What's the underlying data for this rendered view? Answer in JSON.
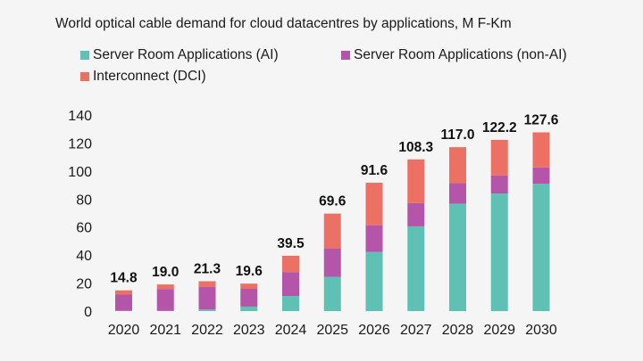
{
  "chart_data": {
    "type": "bar",
    "stacked": true,
    "title": "World optical cable demand for cloud datacentres by applications, M F-Km",
    "xlabel": "",
    "ylabel": "",
    "ylim": [
      0,
      140
    ],
    "yticks": [
      0,
      20,
      40,
      60,
      80,
      100,
      120,
      140
    ],
    "grid": false,
    "legend_position": "top-left",
    "categories": [
      "2020",
      "2021",
      "2022",
      "2023",
      "2024",
      "2025",
      "2026",
      "2027",
      "2028",
      "2029",
      "2030"
    ],
    "series": [
      {
        "name": "Server Room Applications (AI)",
        "color": "#5fc0b4",
        "values": [
          0.2,
          0.1,
          1.1,
          3.2,
          10.8,
          24.5,
          42.2,
          60.5,
          76.7,
          84.0,
          90.9
        ]
      },
      {
        "name": "Server Room Applications (non-AI)",
        "color": "#b555a9",
        "values": [
          11.6,
          15.7,
          16.3,
          12.7,
          17.1,
          20.3,
          19.1,
          16.6,
          14.6,
          12.8,
          11.7
        ]
      },
      {
        "name": "Interconnect (DCI)",
        "color": "#ec7063",
        "values": [
          3.0,
          3.2,
          3.9,
          3.7,
          11.6,
          24.8,
          30.3,
          31.2,
          25.7,
          25.4,
          25.0
        ]
      }
    ],
    "totals": [
      "14.8",
      "19.0",
      "21.3",
      "19.6",
      "39.5",
      "69.6",
      "91.6",
      "108.3",
      "117.0",
      "122.2",
      "127.6"
    ]
  },
  "legend": [
    {
      "label": "Server Room Applications (AI)",
      "color": "#5fc0b4"
    },
    {
      "label": "Server Room Applications (non-AI)",
      "color": "#b555a9"
    },
    {
      "label": "Interconnect (DCI)",
      "color": "#ec7063"
    }
  ]
}
